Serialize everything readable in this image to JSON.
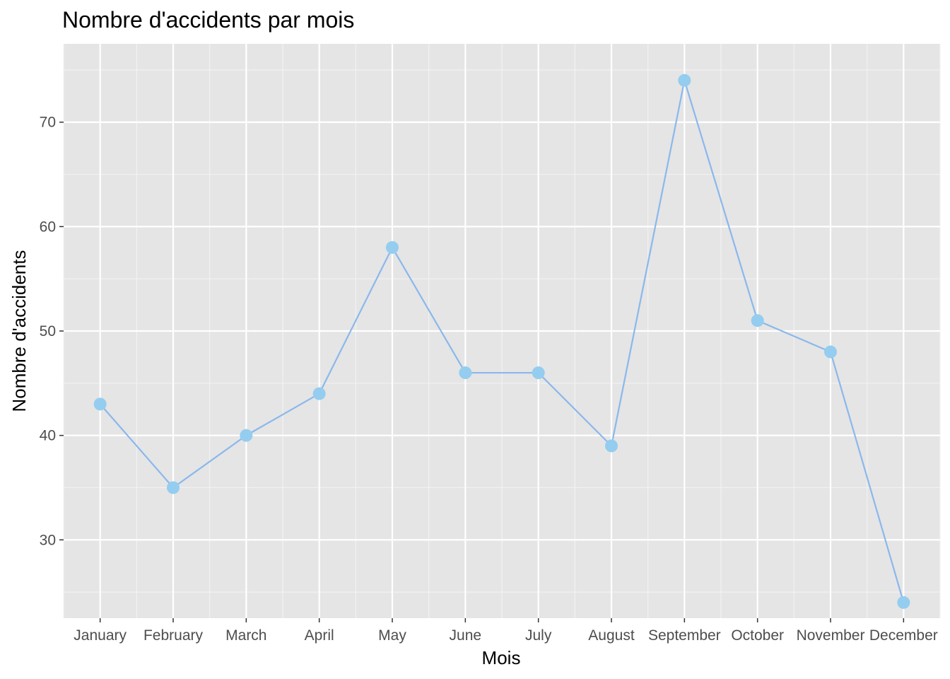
{
  "chart_data": {
    "type": "line",
    "title": "Nombre d'accidents par mois",
    "xlabel": "Mois",
    "ylabel": "Nombre d'accidents",
    "categories": [
      "January",
      "February",
      "March",
      "April",
      "May",
      "June",
      "July",
      "August",
      "September",
      "October",
      "November",
      "December"
    ],
    "series": [
      {
        "values": [
          43,
          35,
          40,
          44,
          58,
          46,
          46,
          39,
          74,
          51,
          48,
          24
        ]
      }
    ],
    "ylim": [
      22.5,
      77.5
    ],
    "yticks": [
      "30",
      "40",
      "50",
      "60",
      "70"
    ],
    "grid": true,
    "legend": "none",
    "colors": {
      "panel_background": "#e5e5e5",
      "grid_major": "#ffffff",
      "grid_minor": "#f2f2f2",
      "line": "#8ab8ec",
      "point": "#94cdef",
      "tick_text": "#4d4d4d",
      "tick_mark": "#333333"
    }
  }
}
